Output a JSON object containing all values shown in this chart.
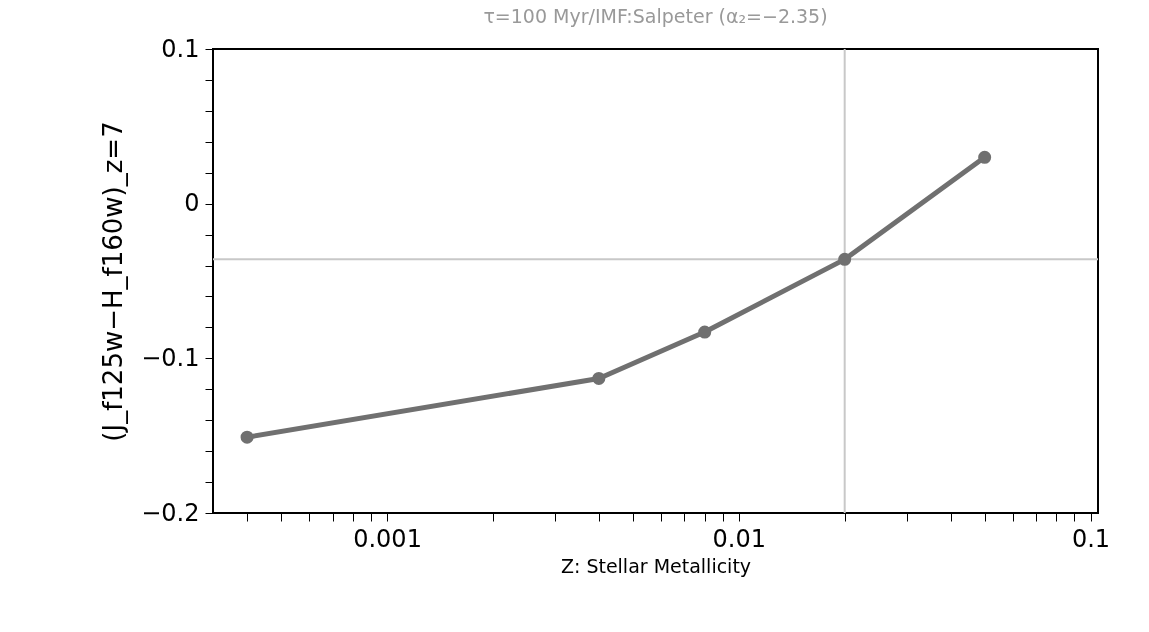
{
  "chart_data": {
    "type": "line",
    "title": "τ=100 Myr/IMF:Salpeter (α₂=−2.35)",
    "xlabel": "Z: Stellar Metallicity",
    "ylabel": "(J_f125w−H_f160w)_z=7",
    "x": [
      0.0004,
      0.004,
      0.008,
      0.02,
      0.05
    ],
    "series": [
      {
        "color": "#707070",
        "values": [
          -0.151,
          -0.113,
          -0.083,
          -0.036,
          0.03
        ]
      }
    ],
    "marker": "circle",
    "line_style": "solid",
    "log": "x",
    "grid": false,
    "xlim": [
      0.00032,
      0.105
    ],
    "xticks": [
      {
        "value": 0.0004,
        "label": null
      },
      {
        "value": 0.0005,
        "label": null
      },
      {
        "value": 0.0006,
        "label": null
      },
      {
        "value": 0.0007,
        "label": null
      },
      {
        "value": 0.0008,
        "label": null
      },
      {
        "value": 0.0009,
        "label": null
      },
      0.001,
      {
        "value": 0.002,
        "label": null
      },
      {
        "value": 0.003,
        "label": null
      },
      {
        "value": 0.004,
        "label": null
      },
      {
        "value": 0.005,
        "label": null
      },
      {
        "value": 0.006,
        "label": null
      },
      {
        "value": 0.007,
        "label": null
      },
      {
        "value": 0.008,
        "label": null
      },
      {
        "value": 0.009,
        "label": null
      },
      0.01,
      {
        "value": 0.02,
        "label": null
      },
      {
        "value": 0.03,
        "label": null
      },
      {
        "value": 0.04,
        "label": null
      },
      {
        "value": 0.05,
        "label": null
      },
      {
        "value": 0.06,
        "label": null
      },
      {
        "value": 0.07,
        "label": null
      },
      {
        "value": 0.08,
        "label": null
      },
      {
        "value": 0.09,
        "label": null
      },
      0.1
    ],
    "ylim": [
      -0.2,
      0.1
    ],
    "yticks": [
      {
        "value": -0.2,
        "label": "−0.2"
      },
      {
        "value": -0.18,
        "label": null
      },
      {
        "value": -0.16,
        "label": null
      },
      {
        "value": -0.14,
        "label": null
      },
      {
        "value": -0.12,
        "label": null
      },
      {
        "value": -0.1,
        "label": "−0.1"
      },
      {
        "value": -0.08,
        "label": null
      },
      {
        "value": -0.06,
        "label": null
      },
      {
        "value": -0.04,
        "label": null
      },
      {
        "value": -0.02,
        "label": null
      },
      0,
      {
        "value": 0.02,
        "label": null
      },
      {
        "value": 0.04,
        "label": null
      },
      {
        "value": 0.06,
        "label": null
      },
      {
        "value": 0.08,
        "label": null
      },
      0.1
    ],
    "ref_lines": [
      {
        "axis": "x",
        "value": 0.02,
        "color": "#c8c8c8"
      },
      {
        "axis": "y",
        "value": -0.036,
        "color": "#c8c8c8"
      }
    ]
  }
}
